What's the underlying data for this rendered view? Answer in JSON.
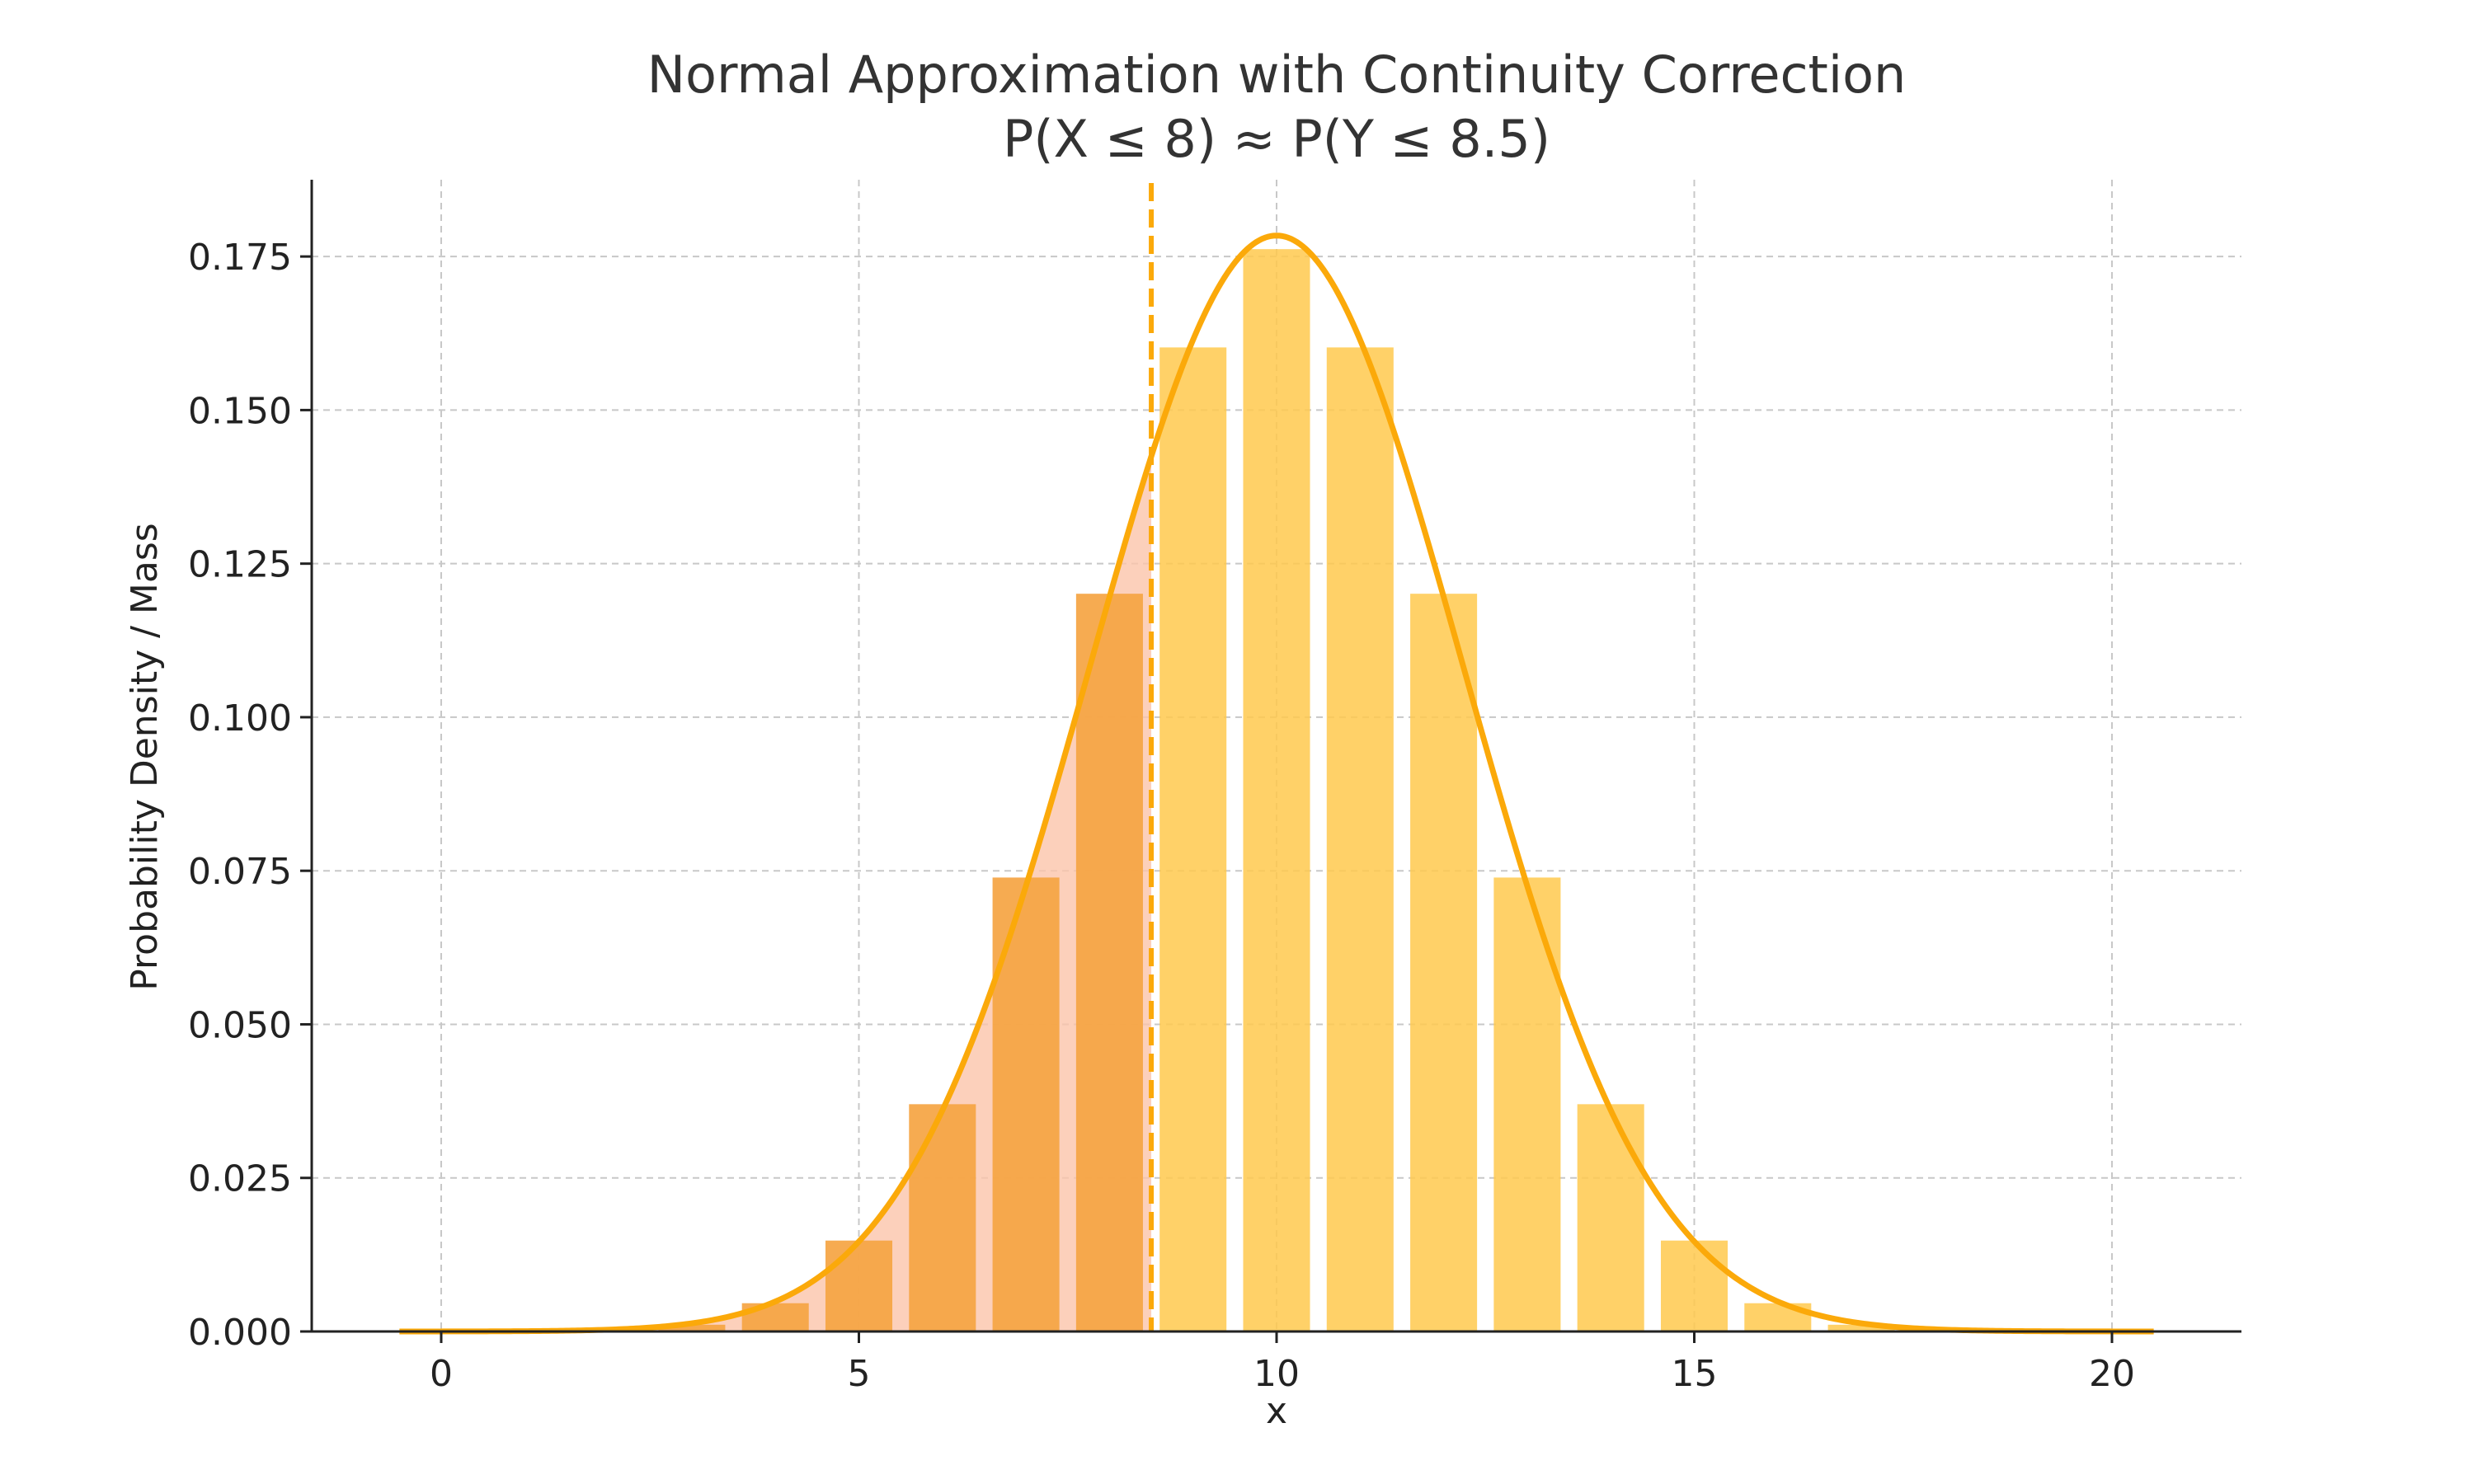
{
  "chart_data": {
    "type": "bar",
    "title": "Normal Approximation with Continuity Correction",
    "subtitle": "P(X ≤ 8) ≈ P(Y ≤ 8.5)",
    "xlabel": "x",
    "ylabel": "Probability Density / Mass",
    "xlim": [
      -1.55,
      21.55
    ],
    "ylim": [
      0,
      0.1875
    ],
    "x_ticks": [
      0,
      5,
      10,
      15,
      20
    ],
    "y_ticks": [
      0.0,
      0.025,
      0.05,
      0.075,
      0.1,
      0.125,
      0.15,
      0.175
    ],
    "y_tick_decimals": 3,
    "grid": true,
    "bars": {
      "x": [
        0,
        1,
        2,
        3,
        4,
        5,
        6,
        7,
        8,
        9,
        10,
        11,
        12,
        13,
        14,
        15,
        16,
        17,
        18,
        19,
        20
      ],
      "values": [
        0.0,
        0.0,
        0.0002,
        0.0011,
        0.0046,
        0.0148,
        0.037,
        0.0739,
        0.1201,
        0.1602,
        0.1762,
        0.1602,
        0.1201,
        0.0739,
        0.037,
        0.0148,
        0.0046,
        0.0011,
        0.0002,
        0.0,
        0.0
      ],
      "highlight_max_x": 8,
      "color": "#FFC94D",
      "highlight_color": "#F5A442"
    },
    "normal_curve": {
      "mean": 10,
      "sd": 2.2361,
      "x_range": [
        -0.5,
        20.5
      ],
      "color": "#FBA90A"
    },
    "shaded_region": {
      "to_x": 8.5,
      "color": "#FBC4AA"
    },
    "cutoff_line": {
      "x": 8.5,
      "style": "dashed",
      "color": "#FBA90A"
    }
  }
}
